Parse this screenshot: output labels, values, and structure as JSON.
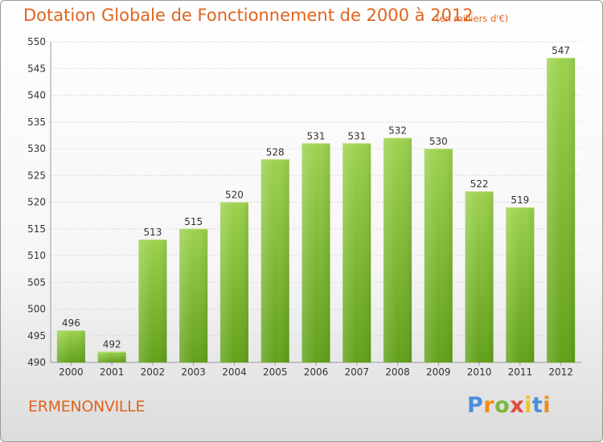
{
  "title": "Dotation Globale de Fonctionnement de 2000 à 2012",
  "unit_label": "(en milliers d'€)",
  "commune": "ERMENONVILLE",
  "logo": {
    "text": "Proxiti",
    "colors": [
      "#4a90d9",
      "#f08a1c",
      "#7ab83a",
      "#e34b3b",
      "#f3c21d",
      "#4a90d9",
      "#f08a1c"
    ]
  },
  "colors": {
    "bar_top": "#9cd24e",
    "bar_bottom": "#62a11a",
    "accent": "#e0641e",
    "axis_text": "#333333",
    "grid": "#d8d8d8"
  },
  "chart_data": {
    "type": "bar",
    "title": "Dotation Globale de Fonctionnement de 2000 à 2012",
    "categories": [
      "2000",
      "2001",
      "2002",
      "2003",
      "2004",
      "2005",
      "2006",
      "2007",
      "2008",
      "2009",
      "2010",
      "2011",
      "2012"
    ],
    "values": [
      496,
      492,
      513,
      515,
      520,
      528,
      531,
      531,
      532,
      530,
      522,
      519,
      547
    ],
    "ylim": [
      490,
      550
    ],
    "yticks": [
      490,
      495,
      500,
      505,
      510,
      515,
      520,
      525,
      530,
      535,
      540,
      545,
      550
    ],
    "xlabel": "",
    "ylabel": "",
    "grid": true,
    "data_labels": true
  }
}
